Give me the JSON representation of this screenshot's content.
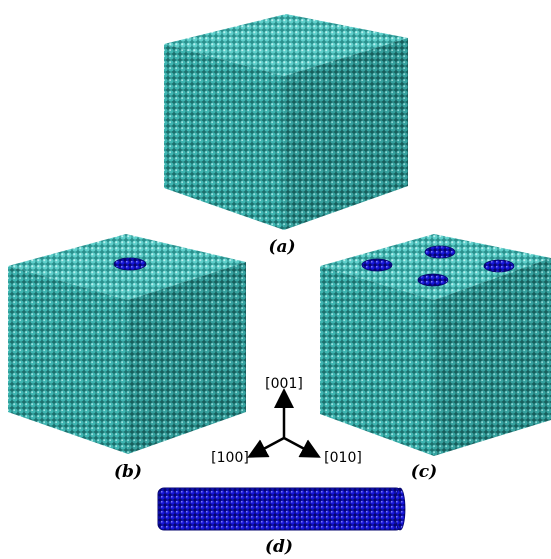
{
  "panels": {
    "a": {
      "label": "(a)"
    },
    "b": {
      "label": "(b)"
    },
    "c": {
      "label": "(c)"
    },
    "d": {
      "label": "(d)"
    }
  },
  "axes": {
    "z": "[001]",
    "x": "[100]",
    "y": "[010]"
  },
  "colors": {
    "matrix_atoms": "#3fb6b2",
    "matrix_top": "#5fd0cc",
    "matrix_dark": "#1f7e7c",
    "inclusion_atoms": "#1515d8",
    "inclusion_dark": "#06066e",
    "axis_arrow": "#000000"
  },
  "structure": {
    "cube_a": {
      "inclusions": 0
    },
    "cube_b": {
      "inclusions": 1
    },
    "cube_c": {
      "inclusions": 4
    },
    "rod_d": {
      "material": "inclusion"
    }
  }
}
